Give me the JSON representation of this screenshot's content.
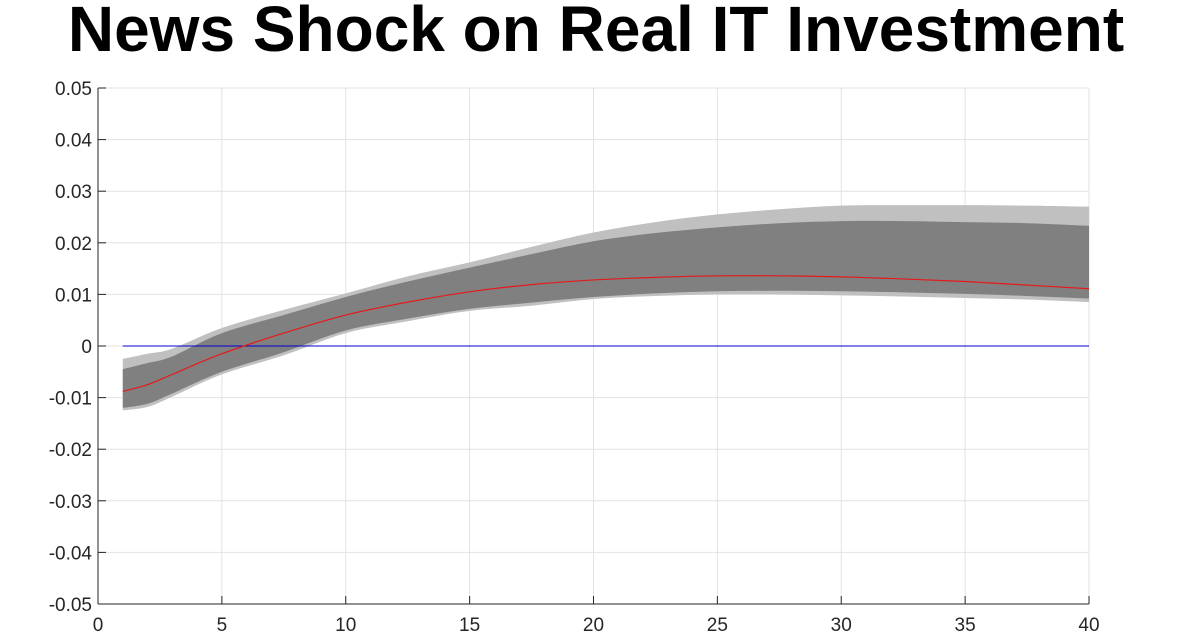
{
  "chart_data": {
    "type": "area",
    "title": "News Shock on Real IT Investment",
    "xlabel": "",
    "ylabel": "",
    "xlim": [
      0,
      40
    ],
    "ylim": [
      -0.05,
      0.05
    ],
    "grid": true,
    "x_ticks": [
      "0",
      "5",
      "10",
      "15",
      "20",
      "25",
      "30",
      "35",
      "40"
    ],
    "y_ticks": [
      "-0.05",
      "-0.04",
      "-0.03",
      "-0.02",
      "-0.01",
      "0",
      "0.01",
      "0.02",
      "0.03",
      "0.04",
      "0.05"
    ],
    "x_tick_values": [
      0,
      5,
      10,
      15,
      20,
      25,
      30,
      35,
      40
    ],
    "y_tick_values": [
      -0.05,
      -0.04,
      -0.03,
      -0.02,
      -0.01,
      0,
      0.01,
      0.02,
      0.03,
      0.04,
      0.05
    ],
    "x": [
      1,
      2,
      3,
      5,
      7.5,
      10,
      12.5,
      15,
      17.5,
      20,
      22.5,
      25,
      27.5,
      30,
      32.5,
      35,
      37.5,
      40
    ],
    "series": [
      {
        "role": "outer-band",
        "color": "#c0c0c0",
        "upper": [
          -0.0025,
          -0.0015,
          -0.0005,
          0.0035,
          0.007,
          0.0102,
          0.0135,
          0.0162,
          0.0192,
          0.022,
          0.024,
          0.0255,
          0.0265,
          0.0272,
          0.0273,
          0.0273,
          0.0272,
          0.027
        ],
        "lower": [
          -0.0125,
          -0.0118,
          -0.0098,
          -0.0055,
          -0.0018,
          0.0025,
          0.0048,
          0.0068,
          0.0078,
          0.0091,
          0.0097,
          0.01,
          0.01,
          0.0098,
          0.0096,
          0.0093,
          0.009,
          0.0085
        ]
      },
      {
        "role": "inner-band",
        "color": "#808080",
        "upper": [
          -0.0045,
          -0.0033,
          -0.002,
          0.0025,
          0.006,
          0.0095,
          0.0125,
          0.0152,
          0.0178,
          0.0203,
          0.0219,
          0.023,
          0.0238,
          0.0242,
          0.0242,
          0.024,
          0.0238,
          0.0233
        ],
        "lower": [
          -0.012,
          -0.0112,
          -0.0092,
          -0.005,
          -0.0012,
          0.003,
          0.0053,
          0.0072,
          0.0084,
          0.0095,
          0.0102,
          0.0106,
          0.0107,
          0.0106,
          0.0104,
          0.0101,
          0.0097,
          0.0092
        ]
      },
      {
        "role": "median",
        "color": "#e41a1c",
        "values": [
          -0.0088,
          -0.0075,
          -0.0055,
          -0.0015,
          0.0025,
          0.006,
          0.0085,
          0.0105,
          0.0119,
          0.0128,
          0.0133,
          0.0136,
          0.0136,
          0.0134,
          0.013,
          0.0125,
          0.0118,
          0.0111
        ]
      }
    ],
    "zero_line": {
      "y": 0,
      "x_range": [
        1,
        40
      ],
      "color": "#0000cc"
    }
  }
}
